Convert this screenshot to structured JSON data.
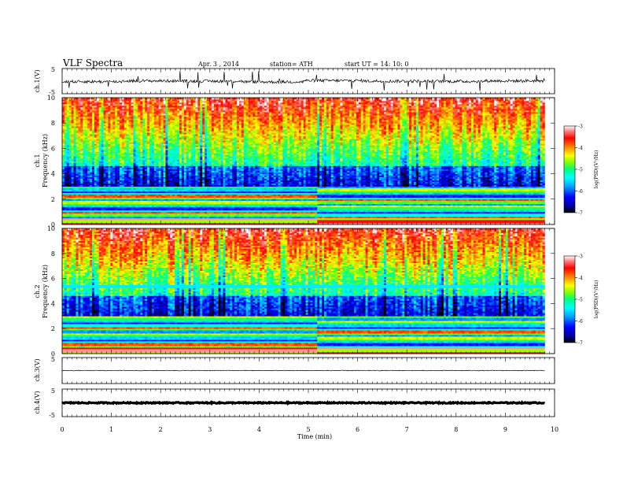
{
  "header": {
    "title": "VLF  Spectra",
    "date": "Apr. 3  , 2014",
    "station": "station= ATH",
    "start": "start  UT  =   14: 10: 0"
  },
  "chart_data": [
    {
      "type": "line",
      "ylabel": "ch.1(V)",
      "ylim": [
        -5,
        5
      ],
      "yticks": [
        "5",
        "-5"
      ],
      "series": [
        {
          "values": [
            -0.2,
            0.1,
            0.0,
            -0.3,
            0.2,
            0.0,
            -0.1,
            0.1
          ]
        }
      ]
    },
    {
      "type": "heatmap",
      "ylabel": [
        "ch.1",
        "Frequency (kHz)"
      ],
      "ylim": [
        0,
        10
      ],
      "yticks": [
        "0",
        "2",
        "4",
        "6",
        "8",
        "10"
      ],
      "colorbar": {
        "label": "log(PSD)(V²/Hz)",
        "ticks": [
          "-3",
          "-4",
          "-5",
          "-6",
          "-7"
        ],
        "range": [
          -7,
          -3
        ]
      },
      "transition_time_min": 5.2
    },
    {
      "type": "heatmap",
      "ylabel": [
        "ch.2",
        "Frequency (kHz)"
      ],
      "ylim": [
        0,
        10
      ],
      "yticks": [
        "0",
        "2",
        "4",
        "6",
        "8",
        "10"
      ],
      "colorbar": {
        "label": "log(PSD)(V²/Hz)",
        "ticks": [
          "-3",
          "-4",
          "-5",
          "-6",
          "-7"
        ],
        "range": [
          -7,
          -3
        ]
      },
      "transition_time_min": 5.2
    },
    {
      "type": "line",
      "ylabel": "ch.3(V)",
      "ylim": [
        -5,
        5
      ],
      "yticks": [
        "5",
        "-5"
      ],
      "series": [
        {
          "values": [
            0.0,
            0.0,
            0.0,
            0.0
          ]
        }
      ]
    },
    {
      "type": "line",
      "ylabel": "ch.4(V)",
      "ylim": [
        -5,
        5
      ],
      "yticks": [
        "5",
        "-5"
      ],
      "series": [
        {
          "values": [
            0.0,
            0.0,
            0.0,
            0.0
          ]
        }
      ]
    }
  ],
  "x_axis": {
    "label": "Time  (min)",
    "ticks": [
      "0",
      "1",
      "2",
      "3",
      "4",
      "5",
      "6",
      "7",
      "8",
      "9",
      "10"
    ],
    "xlim": [
      0,
      10
    ],
    "data_end_min": 9.8
  },
  "colors": {
    "colormap": [
      "#000000",
      "#0000a0",
      "#0000ff",
      "#00a0ff",
      "#00ffff",
      "#00ff80",
      "#80ff00",
      "#ffff00",
      "#ff8000",
      "#ff0000",
      "#ff8080",
      "#ffffff"
    ]
  }
}
